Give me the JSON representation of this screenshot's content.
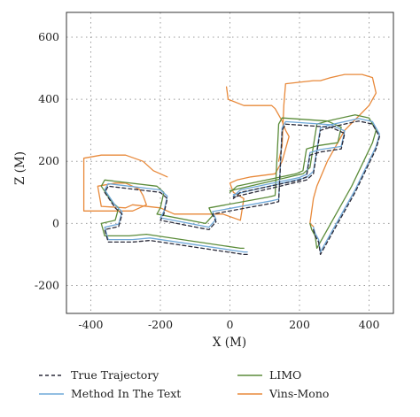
{
  "chart_data": {
    "type": "line",
    "xlabel": "X (M)",
    "ylabel": "Z (M)",
    "xlim": [
      -470,
      470
    ],
    "ylim": [
      -290,
      680
    ],
    "xticks": [
      -400,
      -200,
      0,
      200,
      400
    ],
    "yticks": [
      -200,
      0,
      200,
      400,
      600
    ],
    "xtick_labels": [
      "-400",
      "-200",
      "0",
      "200",
      "400"
    ],
    "ytick_labels": [
      "-200",
      "0",
      "200",
      "400",
      "600"
    ],
    "grid": true,
    "legend_position": "bottom",
    "colors": {
      "true_trajectory": "#2b2b3a",
      "method": "#6fa8d8",
      "limo": "#5b8c3a",
      "vins": "#e8893a"
    },
    "series": [
      {
        "name": "True Trajectory",
        "key": "true_trajectory",
        "style": "dashed",
        "x": [
          50,
          40,
          -230,
          -280,
          -350,
          -360,
          -320,
          -310,
          -330,
          -360,
          -350,
          -200,
          -180,
          -190,
          -200,
          -60,
          -40,
          -50,
          120,
          140,
          150,
          160,
          290,
          330,
          320,
          260,
          230,
          220,
          200,
          30,
          10
        ],
        "y": [
          -100,
          -100,
          -55,
          -60,
          -60,
          -20,
          -10,
          30,
          50,
          100,
          120,
          100,
          80,
          30,
          10,
          -20,
          5,
          30,
          65,
          70,
          300,
          320,
          310,
          290,
          240,
          230,
          220,
          150,
          140,
          100,
          80
        ]
      },
      {
        "name": "",
        "key": "true_trajectory",
        "style": "dashed",
        "x": [
          240,
          245,
          255,
          260,
          320,
          360,
          420,
          430,
          410,
          370,
          290,
          260,
          240,
          220,
          10
        ],
        "y": [
          -20,
          -40,
          -60,
          -100,
          20,
          100,
          240,
          280,
          320,
          330,
          310,
          300,
          160,
          140,
          85
        ]
      },
      {
        "name": "Method In The Text",
        "key": "method",
        "style": "solid",
        "x": [
          50,
          40,
          -230,
          -280,
          -350,
          -360,
          -320,
          -310,
          -330,
          -360,
          -350,
          -200,
          -180,
          -190,
          -200,
          -60,
          -40,
          -50,
          120,
          140,
          150,
          160,
          290,
          330,
          320,
          260,
          230,
          220,
          200,
          30,
          10
        ],
        "y": [
          -92,
          -92,
          -47,
          -52,
          -52,
          -12,
          -2,
          38,
          58,
          108,
          128,
          108,
          88,
          38,
          18,
          -12,
          13,
          38,
          73,
          78,
          308,
          328,
          318,
          298,
          248,
          238,
          228,
          158,
          148,
          108,
          88
        ]
      },
      {
        "name": "",
        "key": "method",
        "style": "solid",
        "x": [
          240,
          245,
          255,
          260,
          320,
          360,
          420,
          430,
          410,
          370,
          290,
          260,
          240,
          220,
          10
        ],
        "y": [
          -12,
          -32,
          -52,
          -92,
          28,
          108,
          248,
          288,
          328,
          338,
          318,
          308,
          168,
          148,
          93
        ]
      },
      {
        "name": "LIMO",
        "key": "limo",
        "style": "solid",
        "x": [
          40,
          30,
          -240,
          -290,
          -360,
          -370,
          -330,
          -320,
          -340,
          -370,
          -360,
          -210,
          -190,
          -200,
          -210,
          -70,
          -50,
          -60,
          110,
          130,
          140,
          150,
          280,
          320,
          310,
          250,
          220,
          210,
          190,
          20,
          0
        ],
        "y": [
          -80,
          -80,
          -35,
          -40,
          -40,
          0,
          10,
          50,
          70,
          120,
          140,
          120,
          100,
          50,
          30,
          0,
          25,
          50,
          85,
          90,
          320,
          340,
          330,
          310,
          260,
          250,
          240,
          170,
          160,
          120,
          100
        ]
      },
      {
        "name": "",
        "key": "limo",
        "style": "solid",
        "x": [
          230,
          235,
          245,
          250,
          310,
          350,
          410,
          420,
          400,
          360,
          280,
          250,
          230,
          210,
          0
        ],
        "y": [
          0,
          -20,
          -40,
          -80,
          40,
          120,
          260,
          300,
          340,
          350,
          330,
          320,
          180,
          160,
          105
        ]
      },
      {
        "name": "Vins-Mono",
        "key": "vins",
        "style": "solid",
        "x": [
          -10,
          -5,
          40,
          120,
          130,
          150,
          160,
          170,
          150,
          130,
          60,
          20,
          0,
          10,
          40,
          30,
          -20,
          -160,
          -200,
          -280,
          -300,
          -370,
          -380,
          -330,
          -300,
          -280,
          -260,
          -250,
          -240,
          -280,
          -330,
          -420,
          -420,
          -370,
          -300,
          -250,
          -220,
          -180
        ],
        "y": [
          440,
          400,
          380,
          380,
          370,
          330,
          300,
          280,
          200,
          160,
          150,
          140,
          130,
          100,
          80,
          10,
          30,
          30,
          50,
          60,
          50,
          55,
          120,
          130,
          130,
          120,
          110,
          90,
          60,
          40,
          40,
          40,
          210,
          220,
          220,
          200,
          170,
          150
        ]
      },
      {
        "name": "",
        "key": "vins",
        "style": "solid",
        "x": [
          140,
          150,
          155,
          160,
          240,
          260,
          290,
          330,
          380,
          410,
          420,
          400,
          330,
          280,
          250,
          240,
          230,
          240
        ],
        "y": [
          200,
          250,
          380,
          450,
          460,
          460,
          470,
          480,
          480,
          470,
          420,
          380,
          300,
          200,
          120,
          80,
          0,
          -10
        ]
      }
    ]
  },
  "legend": {
    "items": [
      {
        "label": "True Trajectory",
        "key": "true_trajectory",
        "style": "dashed"
      },
      {
        "label": "LIMO",
        "key": "limo",
        "style": "solid"
      },
      {
        "label": "Method In The Text",
        "key": "method",
        "style": "solid"
      },
      {
        "label": "Vins-Mono",
        "key": "vins",
        "style": "solid"
      }
    ]
  }
}
